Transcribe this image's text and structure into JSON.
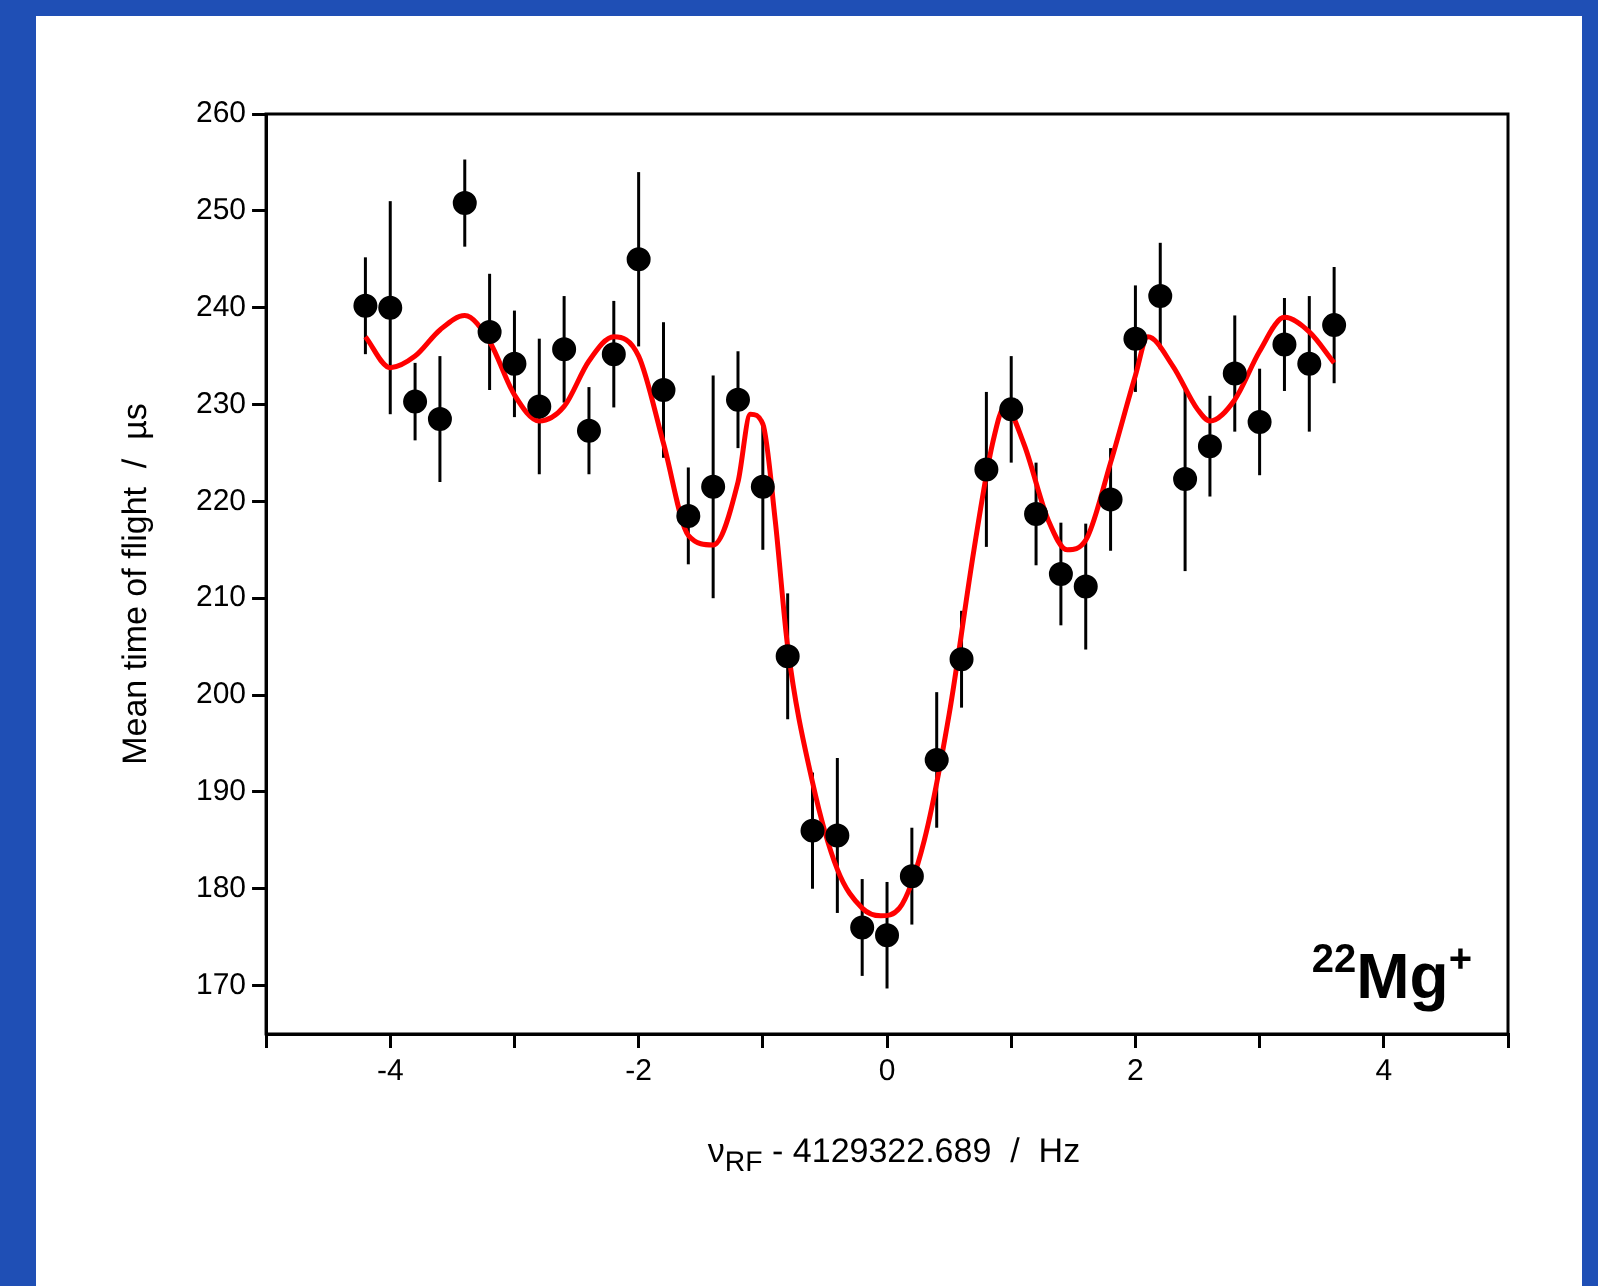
{
  "chart_data": {
    "type": "scatter",
    "xlabel": "ν$_{RF}$ - 4129322.689  /  Hz",
    "ylabel": "Mean time of flight  /  µs",
    "annotations": [
      "$^{22}$Mg$^{+}$"
    ],
    "xlim": [
      -5,
      5
    ],
    "xticks": [
      {
        "value": -5,
        "label": null
      },
      -4,
      {
        "value": -3,
        "label": null
      },
      -2,
      {
        "value": -1,
        "label": null
      },
      0,
      {
        "value": 1,
        "label": null
      },
      2,
      {
        "value": 3,
        "label": null
      },
      4,
      {
        "value": 5,
        "label": null
      }
    ],
    "ylim": [
      165,
      260
    ],
    "yticks": [
      170,
      180,
      190,
      200,
      210,
      220,
      230,
      240,
      250,
      260
    ],
    "grid": false,
    "marker": "circle",
    "series": [
      {
        "color": "#000000",
        "x": [
          -4.2,
          -4.0,
          -3.8,
          -3.6,
          -3.4,
          -3.2,
          -3.0,
          -2.8,
          -2.6,
          -2.4,
          -2.2,
          -2.0,
          -1.8,
          -1.6,
          -1.4,
          -1.2,
          -1.0,
          -0.8,
          -0.6,
          -0.4,
          -0.2,
          0.0,
          0.2,
          0.4,
          0.6,
          0.8,
          1.0,
          1.2,
          1.4,
          1.6,
          1.8,
          2.0,
          2.2,
          2.4,
          2.6,
          2.8,
          3.0,
          3.2,
          3.4,
          3.6
        ],
        "values": [
          240.2,
          240,
          230.3,
          228.5,
          250.8,
          237.5,
          234.2,
          229.8,
          235.7,
          227.3,
          235.2,
          245,
          231.5,
          218.5,
          221.5,
          230.5,
          221.5,
          204,
          186,
          185.5,
          176,
          175.2,
          181.3,
          193.3,
          203.7,
          223.3,
          229.5,
          218.7,
          212.5,
          211.2,
          220.2,
          236.8,
          241.2,
          222.3,
          225.7,
          233.2,
          228.2,
          236.2,
          234.2,
          238.2
        ],
        "errors": [
          5,
          11,
          4,
          6.5,
          4.5,
          6,
          5.5,
          7,
          5.5,
          4.5,
          5.5,
          9,
          7,
          5,
          11.5,
          5,
          6.5,
          6.5,
          6,
          8,
          5,
          5.5,
          5,
          7,
          5,
          8,
          5.5,
          5.3,
          5.3,
          6.5,
          5.3,
          5.5,
          5.5,
          9.5,
          5.2,
          6,
          5.5,
          4.8,
          7,
          6
        ]
      },
      {
        "type": "line",
        "color": "#ff0000",
        "marker": "none",
        "x": [
          -4.2,
          -4.0,
          -3.8,
          -3.6,
          -3.4,
          -3.2,
          -3.0,
          -2.8,
          -2.6,
          -2.4,
          -2.2,
          -2.0,
          -1.8,
          -1.6,
          -1.4,
          -1.2,
          -1.1,
          -1.0,
          -0.9,
          -0.8,
          -0.6,
          -0.4,
          -0.2,
          -0.05,
          0.1,
          0.3,
          0.5,
          0.7,
          0.85,
          0.95,
          1.1,
          1.3,
          1.45,
          1.6,
          1.8,
          2.0,
          2.1,
          2.3,
          2.5,
          2.6,
          2.8,
          3.0,
          3.2,
          3.4,
          3.6
        ],
        "values": [
          237,
          233.8,
          235,
          237.7,
          239.2,
          236.5,
          231,
          228.3,
          229.8,
          234.5,
          237,
          235,
          226,
          216.5,
          215.5,
          222,
          229,
          228,
          218,
          205,
          191,
          182,
          178,
          177.2,
          178,
          185,
          198,
          215,
          226,
          229.8,
          226,
          218,
          215,
          216,
          224,
          233,
          237,
          234,
          229.5,
          228.3,
          230.5,
          235.5,
          239,
          237.5,
          234.3
        ]
      }
    ]
  }
}
